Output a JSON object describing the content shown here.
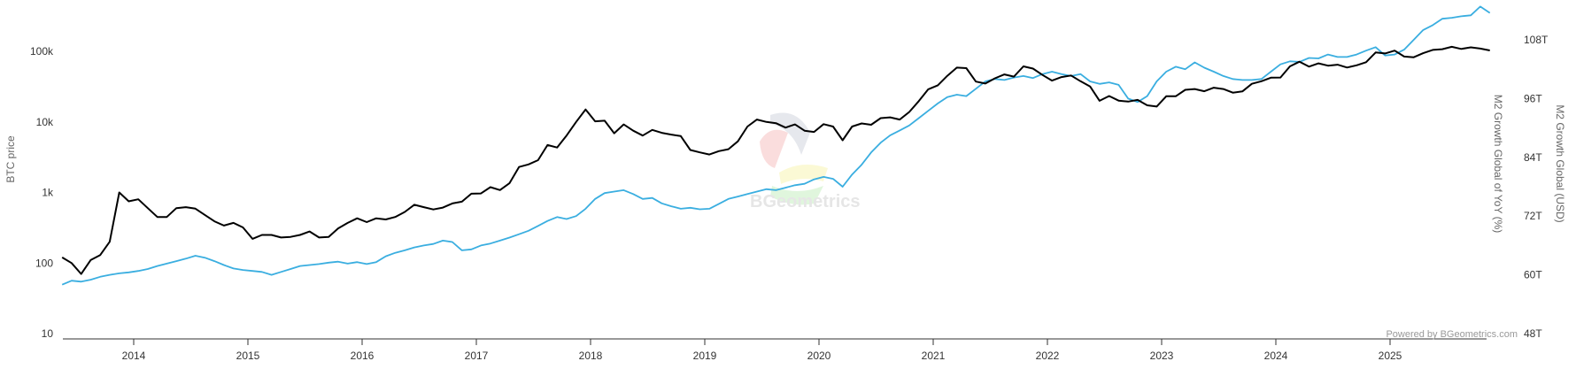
{
  "chart_data": {
    "type": "line",
    "title": "",
    "watermark": "BGeometrics",
    "credit": "Powered by BGeometrics.com",
    "x_start": "2013-05",
    "x_step": "month",
    "x_ticks": [
      "2014",
      "2015",
      "2016",
      "2017",
      "2018",
      "2019",
      "2020",
      "2021",
      "2022",
      "2023",
      "2024",
      "2025"
    ],
    "y_left": {
      "label": "BTC price",
      "scale": "log",
      "range": [
        10,
        100000
      ],
      "ticks": [
        "10",
        "100",
        "1k",
        "10k",
        "100k"
      ],
      "tick_values": [
        10,
        100,
        1000,
        10000,
        100000
      ]
    },
    "y_right": {
      "labels": [
        "M2 Growth Global of YoY (%)",
        "M2 Growth Global (USD)"
      ],
      "scale": "linear",
      "range": [
        48,
        115
      ],
      "ticks": [
        "48T",
        "60T",
        "72T",
        "84T",
        "96T",
        "108T"
      ],
      "tick_values": [
        48,
        60,
        72,
        84,
        96,
        108
      ]
    },
    "series": [
      {
        "name": "BTC price",
        "axis": "left",
        "color": "#000000",
        "values": [
          120,
          100,
          70,
          110,
          130,
          200,
          1000,
          750,
          800,
          600,
          450,
          450,
          600,
          620,
          590,
          480,
          390,
          340,
          370,
          320,
          220,
          250,
          250,
          230,
          235,
          250,
          280,
          230,
          235,
          310,
          370,
          430,
          380,
          430,
          415,
          450,
          530,
          670,
          620,
          575,
          610,
          700,
          740,
          960,
          970,
          1190,
          1080,
          1350,
          2300,
          2500,
          2870,
          4700,
          4340,
          6400,
          10000,
          15000,
          10200,
          10400,
          6900,
          9200,
          7500,
          6400,
          7700,
          7000,
          6600,
          6300,
          4000,
          3700,
          3450,
          3850,
          4100,
          5300,
          8600,
          10800,
          10000,
          9600,
          8300,
          9200,
          7500,
          7200,
          9300,
          8600,
          5500,
          8600,
          9500,
          9100,
          11300,
          11600,
          10800,
          13800,
          19700,
          29000,
          33000,
          45000,
          58800,
          57700,
          37300,
          35000,
          41500,
          47100,
          43800,
          61300,
          57000,
          46300,
          38500,
          43200,
          45500,
          37700,
          31800,
          19900,
          23300,
          20000,
          19400,
          20500,
          17200,
          16500,
          23100,
          23100,
          28500,
          29200,
          27200,
          30500,
          29200,
          26000,
          27000,
          34700,
          37700,
          42300,
          42600,
          61200,
          71300,
          60600,
          67500,
          62700,
          64600,
          59000,
          63300,
          70200,
          96400,
          93400,
          102400,
          84400,
          82500,
          94200,
          104600,
          107100,
          115700,
          108200,
          114000,
          109500,
          103000
        ]
      },
      {
        "name": "M2 Growth Global (USD)",
        "axis": "right",
        "color": "#3aaee0",
        "values": [
          58,
          58.8,
          58.6,
          59,
          59.6,
          60,
          60.3,
          60.5,
          60.8,
          61.2,
          61.8,
          62.3,
          62.8,
          63.3,
          63.9,
          63.5,
          62.8,
          62,
          61.3,
          61,
          60.8,
          60.6,
          60,
          60.6,
          61.2,
          61.8,
          62,
          62.2,
          62.5,
          62.7,
          62.3,
          62.6,
          62.2,
          62.6,
          63.8,
          64.5,
          65,
          65.6,
          66,
          66.3,
          67,
          66.7,
          65,
          65.2,
          66,
          66.4,
          67,
          67.6,
          68.3,
          69,
          70,
          71,
          71.8,
          71.4,
          72,
          73.5,
          75.5,
          76.7,
          77,
          77.3,
          76.5,
          75.5,
          75.7,
          74.6,
          74,
          73.5,
          73.7,
          73.4,
          73.5,
          74.5,
          75.5,
          76,
          76.5,
          77,
          77.5,
          77.3,
          77.8,
          78.3,
          78.6,
          79.5,
          80,
          79.6,
          78,
          80.5,
          82.5,
          85,
          87,
          88.5,
          89.5,
          90.5,
          92,
          93.5,
          95,
          96.3,
          96.8,
          96.5,
          98,
          99.5,
          100,
          99.8,
          100.3,
          100.6,
          100.2,
          101,
          101.5,
          101,
          100.6,
          101,
          99.5,
          99,
          99.3,
          98.8,
          96,
          95.3,
          96.5,
          99.5,
          101.5,
          102.5,
          102,
          103.4,
          102.3,
          101.5,
          100.6,
          100,
          99.8,
          99.8,
          100,
          101.5,
          103,
          103.6,
          103.5,
          104.3,
          104.2,
          105,
          104.5,
          104.5,
          105,
          105.8,
          106.5,
          104.8,
          105,
          106,
          108,
          110,
          111,
          112.3,
          112.5,
          112.8,
          113,
          114.8,
          113.5
        ]
      }
    ]
  }
}
